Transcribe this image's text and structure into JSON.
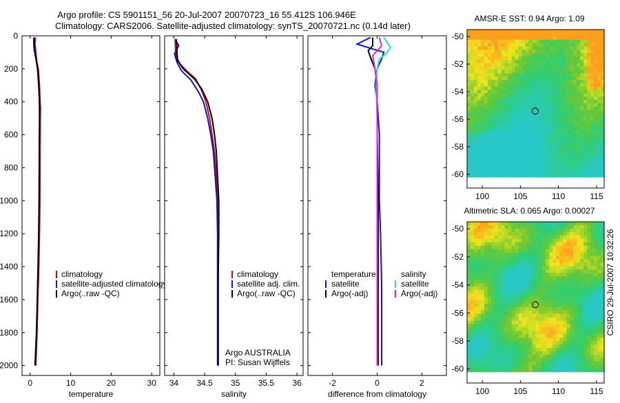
{
  "header": {
    "title_line1": "Argo profile: CS 5901151_56 20-Jul-2007 20070723_16 55.412S 106.946E",
    "title_line2": "Climatology: CARS2006. Satellite-adjusted climatology: synTS_20070721.nc (0.14d later)"
  },
  "footer_stamp": "CSIRO 29-Jul-2007 10:32:26",
  "colors": {
    "red": "#e00000",
    "blue": "#1010e0",
    "black": "#000000",
    "cyan": "#20e0e0",
    "magenta": "#e020e0"
  },
  "chart_data": [
    {
      "type": "line",
      "name": "temperature-profile",
      "xlabel": "temperature",
      "ylabel": "",
      "xlim": [
        -2,
        32
      ],
      "ylim": [
        2060,
        0
      ],
      "xticks": [
        0,
        10,
        20,
        30
      ],
      "xtick_labels": [
        "0",
        "10",
        "20",
        "30"
      ],
      "yticks": [
        0,
        200,
        400,
        600,
        800,
        1000,
        1200,
        1400,
        1600,
        1800,
        2000
      ],
      "ytick_labels": [
        "0",
        "200",
        "400",
        "600",
        "800",
        "1000",
        "1200",
        "1400",
        "1600",
        "1800",
        "2000"
      ],
      "legend": {
        "position": "right-middle",
        "entries": [
          {
            "label": "climatology",
            "color": "red"
          },
          {
            "label": "satellite-adjusted climatology",
            "color": "blue"
          },
          {
            "label": "Argo(..raw -QC)",
            "color": "black"
          }
        ]
      },
      "series": [
        {
          "name": "climatology",
          "color": "red",
          "points": [
            [
              1.3,
              10
            ],
            [
              1.2,
              50
            ],
            [
              1.4,
              100
            ],
            [
              1.6,
              150
            ],
            [
              2.0,
              200
            ],
            [
              2.3,
              300
            ],
            [
              2.45,
              400
            ],
            [
              2.55,
              440
            ],
            [
              2.5,
              500
            ],
            [
              2.45,
              700
            ],
            [
              2.4,
              1000
            ],
            [
              2.3,
              1200
            ],
            [
              2.15,
              1400
            ],
            [
              1.9,
              1600
            ],
            [
              1.7,
              1800
            ],
            [
              1.4,
              2000
            ]
          ]
        },
        {
          "name": "satellite-adjusted climatology",
          "color": "blue",
          "points": [
            [
              1.0,
              10
            ],
            [
              1.1,
              50
            ],
            [
              1.3,
              100
            ],
            [
              1.5,
              150
            ],
            [
              1.8,
              200
            ],
            [
              2.1,
              300
            ],
            [
              2.3,
              400
            ],
            [
              2.35,
              500
            ],
            [
              2.3,
              700
            ],
            [
              2.25,
              1000
            ],
            [
              2.15,
              1200
            ],
            [
              2.0,
              1400
            ],
            [
              1.8,
              1600
            ],
            [
              1.6,
              1800
            ],
            [
              1.3,
              2000
            ]
          ]
        },
        {
          "name": "Argo(..raw -QC)",
          "color": "black",
          "points": [
            [
              0.9,
              10
            ],
            [
              0.9,
              50
            ],
            [
              1.0,
              80
            ],
            [
              1.5,
              150
            ],
            [
              1.9,
              200
            ],
            [
              2.15,
              300
            ],
            [
              2.3,
              400
            ],
            [
              2.3,
              500
            ],
            [
              2.25,
              700
            ],
            [
              2.2,
              1000
            ],
            [
              2.1,
              1200
            ],
            [
              1.95,
              1400
            ],
            [
              1.75,
              1600
            ],
            [
              1.55,
              1800
            ],
            [
              1.2,
              2000
            ]
          ]
        }
      ]
    },
    {
      "type": "line",
      "name": "salinity-profile",
      "xlabel": "salinity",
      "xlim": [
        33.85,
        36.1
      ],
      "ylim": [
        2060,
        0
      ],
      "xticks": [
        34,
        34.5,
        35,
        35.5,
        36
      ],
      "xtick_labels": [
        "34",
        "34.5",
        "35",
        "35.5",
        "36"
      ],
      "legend": {
        "position": "right-middle",
        "entries": [
          {
            "label": "climatology",
            "color": "red"
          },
          {
            "label": "satellite adj. clim.",
            "color": "blue"
          },
          {
            "label": "Argo(..raw -QC)",
            "color": "black"
          }
        ]
      },
      "annotation": [
        "Argo AUSTRALIA",
        "PI: Susan Wijffels"
      ],
      "series": [
        {
          "name": "climatology",
          "color": "red",
          "points": [
            [
              34.02,
              20
            ],
            [
              34.03,
              120
            ],
            [
              34.1,
              170
            ],
            [
              34.2,
              210
            ],
            [
              34.35,
              260
            ],
            [
              34.45,
              330
            ],
            [
              34.52,
              400
            ],
            [
              34.58,
              500
            ],
            [
              34.62,
              600
            ],
            [
              34.66,
              700
            ],
            [
              34.69,
              850
            ],
            [
              34.71,
              1000
            ],
            [
              34.72,
              1200
            ],
            [
              34.72,
              1500
            ],
            [
              34.72,
              1800
            ],
            [
              34.72,
              2000
            ]
          ]
        },
        {
          "name": "satellite adj. clim.",
          "color": "blue",
          "points": [
            [
              34.02,
              20
            ],
            [
              34.08,
              60
            ],
            [
              34.01,
              110
            ],
            [
              34.05,
              160
            ],
            [
              34.12,
              210
            ],
            [
              34.28,
              270
            ],
            [
              34.4,
              340
            ],
            [
              34.48,
              400
            ],
            [
              34.55,
              500
            ],
            [
              34.6,
              600
            ],
            [
              34.64,
              700
            ],
            [
              34.67,
              850
            ],
            [
              34.7,
              1000
            ],
            [
              34.71,
              1200
            ],
            [
              34.71,
              1500
            ],
            [
              34.71,
              1800
            ],
            [
              34.71,
              2000
            ]
          ]
        },
        {
          "name": "Argo(..raw -QC)",
          "color": "black",
          "points": [
            [
              34.04,
              20
            ],
            [
              34.05,
              100
            ],
            [
              34.06,
              150
            ],
            [
              34.15,
              200
            ],
            [
              34.33,
              260
            ],
            [
              34.45,
              320
            ],
            [
              34.55,
              400
            ],
            [
              34.62,
              500
            ],
            [
              34.66,
              600
            ],
            [
              34.69,
              700
            ],
            [
              34.71,
              850
            ],
            [
              34.73,
              1000
            ],
            [
              34.73,
              1200
            ],
            [
              34.72,
              1500
            ],
            [
              34.72,
              1800
            ],
            [
              34.72,
              2000
            ]
          ]
        }
      ]
    },
    {
      "type": "line",
      "name": "difference-profile",
      "xlabel": "difference from climatology",
      "xlim": [
        -3.1,
        3.1
      ],
      "ylim": [
        2060,
        0
      ],
      "xticks": [
        -2,
        0,
        2
      ],
      "xtick_labels": [
        "-2",
        "0",
        "2"
      ],
      "legend": {
        "position": "right-middle",
        "entries": [
          {
            "label": "temperature",
            "color": "none",
            "group": "temperature"
          },
          {
            "label": "satellite",
            "color": "blue",
            "group": "temperature"
          },
          {
            "label": "Argo(-adj)",
            "color": "black",
            "group": "temperature"
          },
          {
            "label": "salinity",
            "color": "none",
            "group": "salinity"
          },
          {
            "label": "satellite",
            "color": "cyan",
            "group": "salinity"
          },
          {
            "label": "Argo(-adj)",
            "color": "magenta",
            "group": "salinity"
          }
        ]
      },
      "series": [
        {
          "name": "temperature satellite",
          "color": "blue",
          "points": [
            [
              -0.3,
              10
            ],
            [
              -0.9,
              50
            ],
            [
              -0.2,
              80
            ],
            [
              0.3,
              100
            ],
            [
              0.2,
              140
            ],
            [
              0.0,
              200
            ],
            [
              -0.1,
              300
            ],
            [
              0.0,
              400
            ],
            [
              0.1,
              600
            ],
            [
              0.1,
              1000
            ],
            [
              0.15,
              1200
            ],
            [
              0.2,
              1500
            ],
            [
              0.2,
              2000
            ]
          ]
        },
        {
          "name": "temperature Argo(-adj)",
          "color": "black",
          "points": [
            [
              -0.2,
              10
            ],
            [
              -0.2,
              60
            ],
            [
              -0.4,
              90
            ],
            [
              -0.3,
              130
            ],
            [
              -0.1,
              200
            ],
            [
              0.0,
              300
            ],
            [
              0.0,
              600
            ],
            [
              0.05,
              1000
            ],
            [
              0.05,
              2000
            ]
          ]
        },
        {
          "name": "salinity satellite",
          "color": "cyan",
          "points": [
            [
              0.3,
              10
            ],
            [
              0.6,
              70
            ],
            [
              0.4,
              110
            ],
            [
              0.1,
              140
            ],
            [
              0.0,
              200
            ],
            [
              -0.05,
              300
            ],
            [
              0.0,
              500
            ],
            [
              0.0,
              1000
            ],
            [
              0.0,
              2000
            ]
          ]
        },
        {
          "name": "salinity Argo(-adj)",
          "color": "magenta",
          "points": [
            [
              0.1,
              10
            ],
            [
              0.2,
              60
            ],
            [
              -0.2,
              120
            ],
            [
              -0.1,
              200
            ],
            [
              0.0,
              300
            ],
            [
              0.0,
              500
            ],
            [
              0.0,
              1000
            ],
            [
              0.0,
              2000
            ]
          ]
        }
      ]
    },
    {
      "type": "heatmap",
      "name": "amsr-e-sst-map",
      "title": "AMSR-E SST: 0.94  Argo: 1.09",
      "xlim": [
        98,
        116
      ],
      "ylim": [
        -61,
        -49.5
      ],
      "xticks": [
        100,
        105,
        110,
        115
      ],
      "xtick_labels": [
        "100",
        "105",
        "110",
        "115"
      ],
      "yticks": [
        -50,
        -52,
        -54,
        -56,
        -58,
        -60
      ],
      "ytick_labels": [
        "-50",
        "-52",
        "-54",
        "-56",
        "-58",
        "-60"
      ],
      "data_extent": {
        "lon": [
          98,
          116
        ],
        "lat": [
          -60.2,
          -49.5
        ]
      },
      "marker": {
        "lon": 106.946,
        "lat": -55.412
      }
    },
    {
      "type": "heatmap",
      "name": "altimetric-sla-map",
      "title": "Altimetric SLA: 0.065  Argo: 0.00027",
      "xlim": [
        98,
        116
      ],
      "ylim": [
        -61,
        -49.5
      ],
      "xticks": [
        100,
        105,
        110,
        115
      ],
      "xtick_labels": [
        "100",
        "105",
        "110",
        "115"
      ],
      "yticks": [
        -50,
        -52,
        -54,
        -56,
        -58,
        -60
      ],
      "ytick_labels": [
        "-50",
        "-52",
        "-54",
        "-56",
        "-58",
        "-60"
      ],
      "data_extent": {
        "lon": [
          98,
          116
        ],
        "lat": [
          -60.2,
          -49.5
        ]
      },
      "marker": {
        "lon": 106.946,
        "lat": -55.412
      }
    }
  ]
}
